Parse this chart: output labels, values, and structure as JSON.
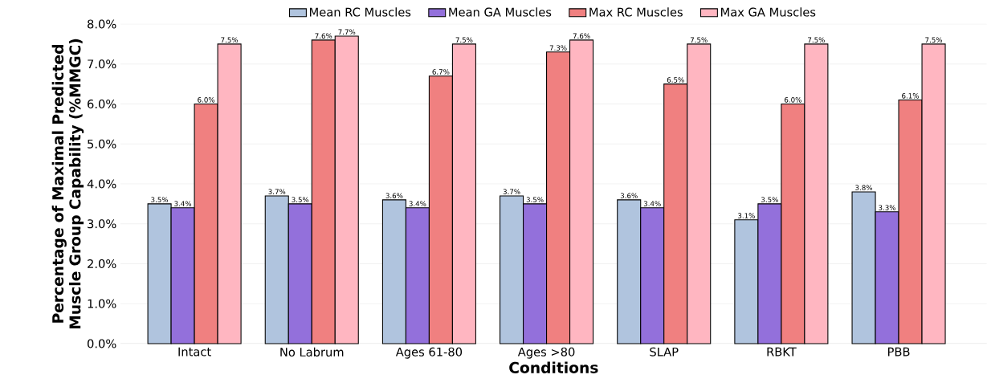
{
  "chart_data": {
    "type": "bar",
    "xlabel": "Conditions",
    "ylabel": "Percentage of Maximal Predicted Muscle Group Capability (%MMGC)",
    "categories": [
      "Intact",
      "No Labrum",
      "Ages 61-80",
      "Ages >80",
      "SLAP",
      "RBKT",
      "PBB"
    ],
    "series": [
      {
        "name": "Mean RC Muscles",
        "color": "#b0c4de",
        "values": [
          3.5,
          3.7,
          3.6,
          3.7,
          3.6,
          3.1,
          3.8
        ],
        "value_labels": [
          "3.5%",
          "3.7%",
          "3.6%",
          "3.7%",
          "3.6%",
          "3.1%",
          "3.8%"
        ]
      },
      {
        "name": "Mean GA Muscles",
        "color": "#9370db",
        "values": [
          3.4,
          3.5,
          3.4,
          3.5,
          3.4,
          3.5,
          3.3
        ],
        "value_labels": [
          "3.4%",
          "3.5%",
          "3.4%",
          "3.5%",
          "3.4%",
          "3.5%",
          "3.3%"
        ]
      },
      {
        "name": "Max RC Muscles",
        "color": "#f08080",
        "values": [
          6.0,
          7.6,
          6.7,
          7.3,
          6.5,
          6.0,
          6.1
        ],
        "value_labels": [
          "6.0%",
          "7.6%",
          "6.7%",
          "7.3%",
          "6.5%",
          "6.0%",
          "6.1%"
        ]
      },
      {
        "name": "Max GA Muscles",
        "color": "#ffb6c1",
        "values": [
          7.5,
          7.7,
          7.5,
          7.6,
          7.5,
          7.5,
          7.5
        ],
        "value_labels": [
          "7.5%",
          "7.7%",
          "7.5%",
          "7.6%",
          "7.5%",
          "7.5%",
          "7.5%"
        ]
      }
    ],
    "ylim": [
      0,
      8
    ],
    "yticks": [
      {
        "value": 0,
        "label": "0.0%"
      },
      {
        "value": 1,
        "label": "1.0%"
      },
      {
        "value": 2,
        "label": "2.0%"
      },
      {
        "value": 3,
        "label": "3.0%"
      },
      {
        "value": 4,
        "label": "4.0%"
      },
      {
        "value": 5,
        "label": "5.0%"
      },
      {
        "value": 6,
        "label": "6.0%"
      },
      {
        "value": 7,
        "label": "7.0%"
      },
      {
        "value": 8,
        "label": "8.0%"
      }
    ],
    "grid": "y",
    "legend": "top"
  }
}
